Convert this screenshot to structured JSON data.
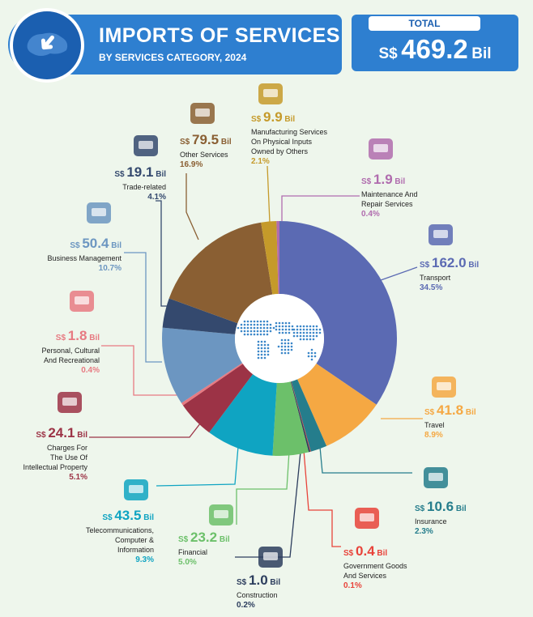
{
  "header": {
    "title": "IMPORTS OF SERVICES",
    "subtitle": "BY SERVICES CATEGORY, 2024",
    "total_label": "TOTAL",
    "total_currency": "S$",
    "total_value": "469.2",
    "total_unit": "Bil"
  },
  "colors": {
    "header_blue": "#2e7fd0",
    "background": "#eef6ec"
  },
  "chart_data": {
    "type": "pie",
    "title": "IMPORTS OF SERVICES",
    "subtitle": "BY SERVICES CATEGORY, 2024",
    "total": 469.2,
    "unit": "S$ Bil",
    "slices": [
      {
        "label": "Transport",
        "value": 162.0,
        "percent": "34.5%",
        "color": "#5b6ab3",
        "icon": "cargo-ship-plane-icon"
      },
      {
        "label": "Travel",
        "value": 41.8,
        "percent": "8.9%",
        "color": "#f5a843",
        "icon": "suitcase-icon"
      },
      {
        "label": "Insurance",
        "value": 10.6,
        "percent": "2.3%",
        "color": "#257d8c",
        "icon": "insurance-agent-icon"
      },
      {
        "label": "Government Goods\nAnd Services",
        "value": 0.4,
        "percent": "0.1%",
        "color": "#e8433a",
        "icon": "government-building-icon"
      },
      {
        "label": "Construction",
        "value": 1.0,
        "percent": "0.2%",
        "color": "#2d3e5e",
        "icon": "road-barrier-icon"
      },
      {
        "label": "Financial",
        "value": 23.2,
        "percent": "5.0%",
        "color": "#6cc06a",
        "icon": "money-coins-icon"
      },
      {
        "label": "Telecommunications,\nComputer &\nInformation",
        "value": 43.5,
        "percent": "9.3%",
        "color": "#0fa4c2",
        "icon": "computer-antenna-icon"
      },
      {
        "label": "Charges For\nThe Use Of\nIntellectual Property",
        "value": 24.1,
        "percent": "5.1%",
        "color": "#9c3346",
        "icon": "lightbulb-idea-icon"
      },
      {
        "label": "Personal, Cultural\nAnd Recreational",
        "value": 1.8,
        "percent": "0.4%",
        "color": "#e77a82",
        "icon": "theatre-music-icon"
      },
      {
        "label": "Business Management",
        "value": 50.4,
        "percent": "10.7%",
        "color": "#6c96c1",
        "icon": "briefcase-icon"
      },
      {
        "label": "Trade-related",
        "value": 19.1,
        "percent": "4.1%",
        "color": "#34496e",
        "icon": "shop-traders-icon"
      },
      {
        "label": "Other Services",
        "value": 79.5,
        "percent": "16.9%",
        "color": "#8a5f33",
        "icon": "open-box-globe-icon"
      },
      {
        "label": "Manufacturing Services\nOn Physical Inputs\nOwned by Others",
        "value": 9.9,
        "percent": "2.1%",
        "color": "#c59a2a",
        "icon": "parcel-box-icon"
      },
      {
        "label": "Maintenance And\nRepair Services",
        "value": 1.9,
        "percent": "0.4%",
        "color": "#b06cae",
        "icon": "wrench-screwdriver-icon"
      }
    ]
  }
}
